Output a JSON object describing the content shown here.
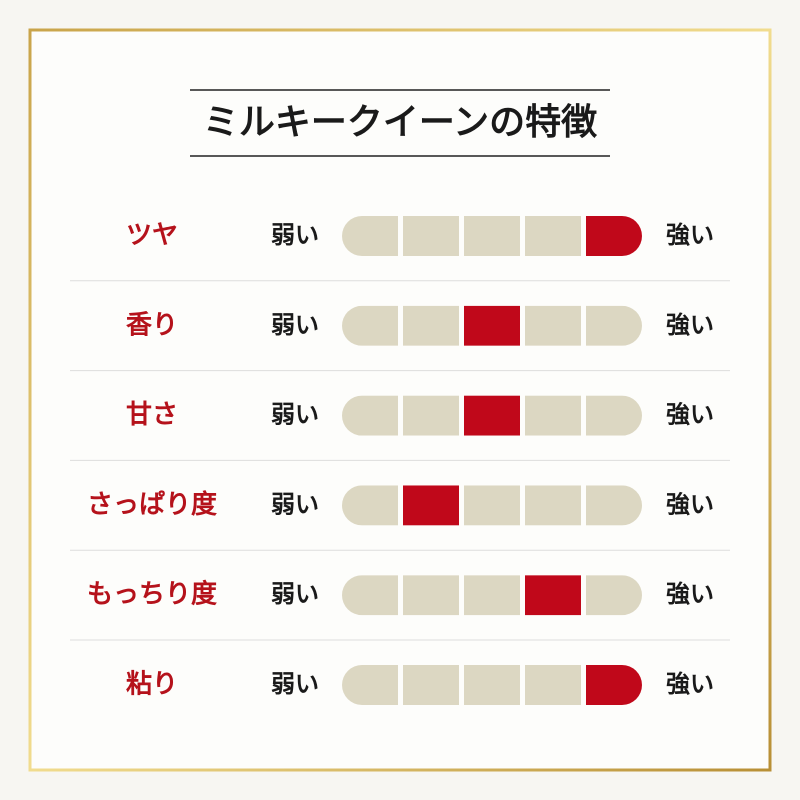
{
  "title": "ミルキークイーンの特徴",
  "low_label": "弱い",
  "high_label": "強い",
  "steps": 5,
  "rows": [
    {
      "label": "ツヤ",
      "level": 5
    },
    {
      "label": "香り",
      "level": 3
    },
    {
      "label": "甘さ",
      "level": 3
    },
    {
      "label": "さっぱり度",
      "level": 2
    },
    {
      "label": "もっちり度",
      "level": 4
    },
    {
      "label": "粘り",
      "level": 5
    }
  ]
}
